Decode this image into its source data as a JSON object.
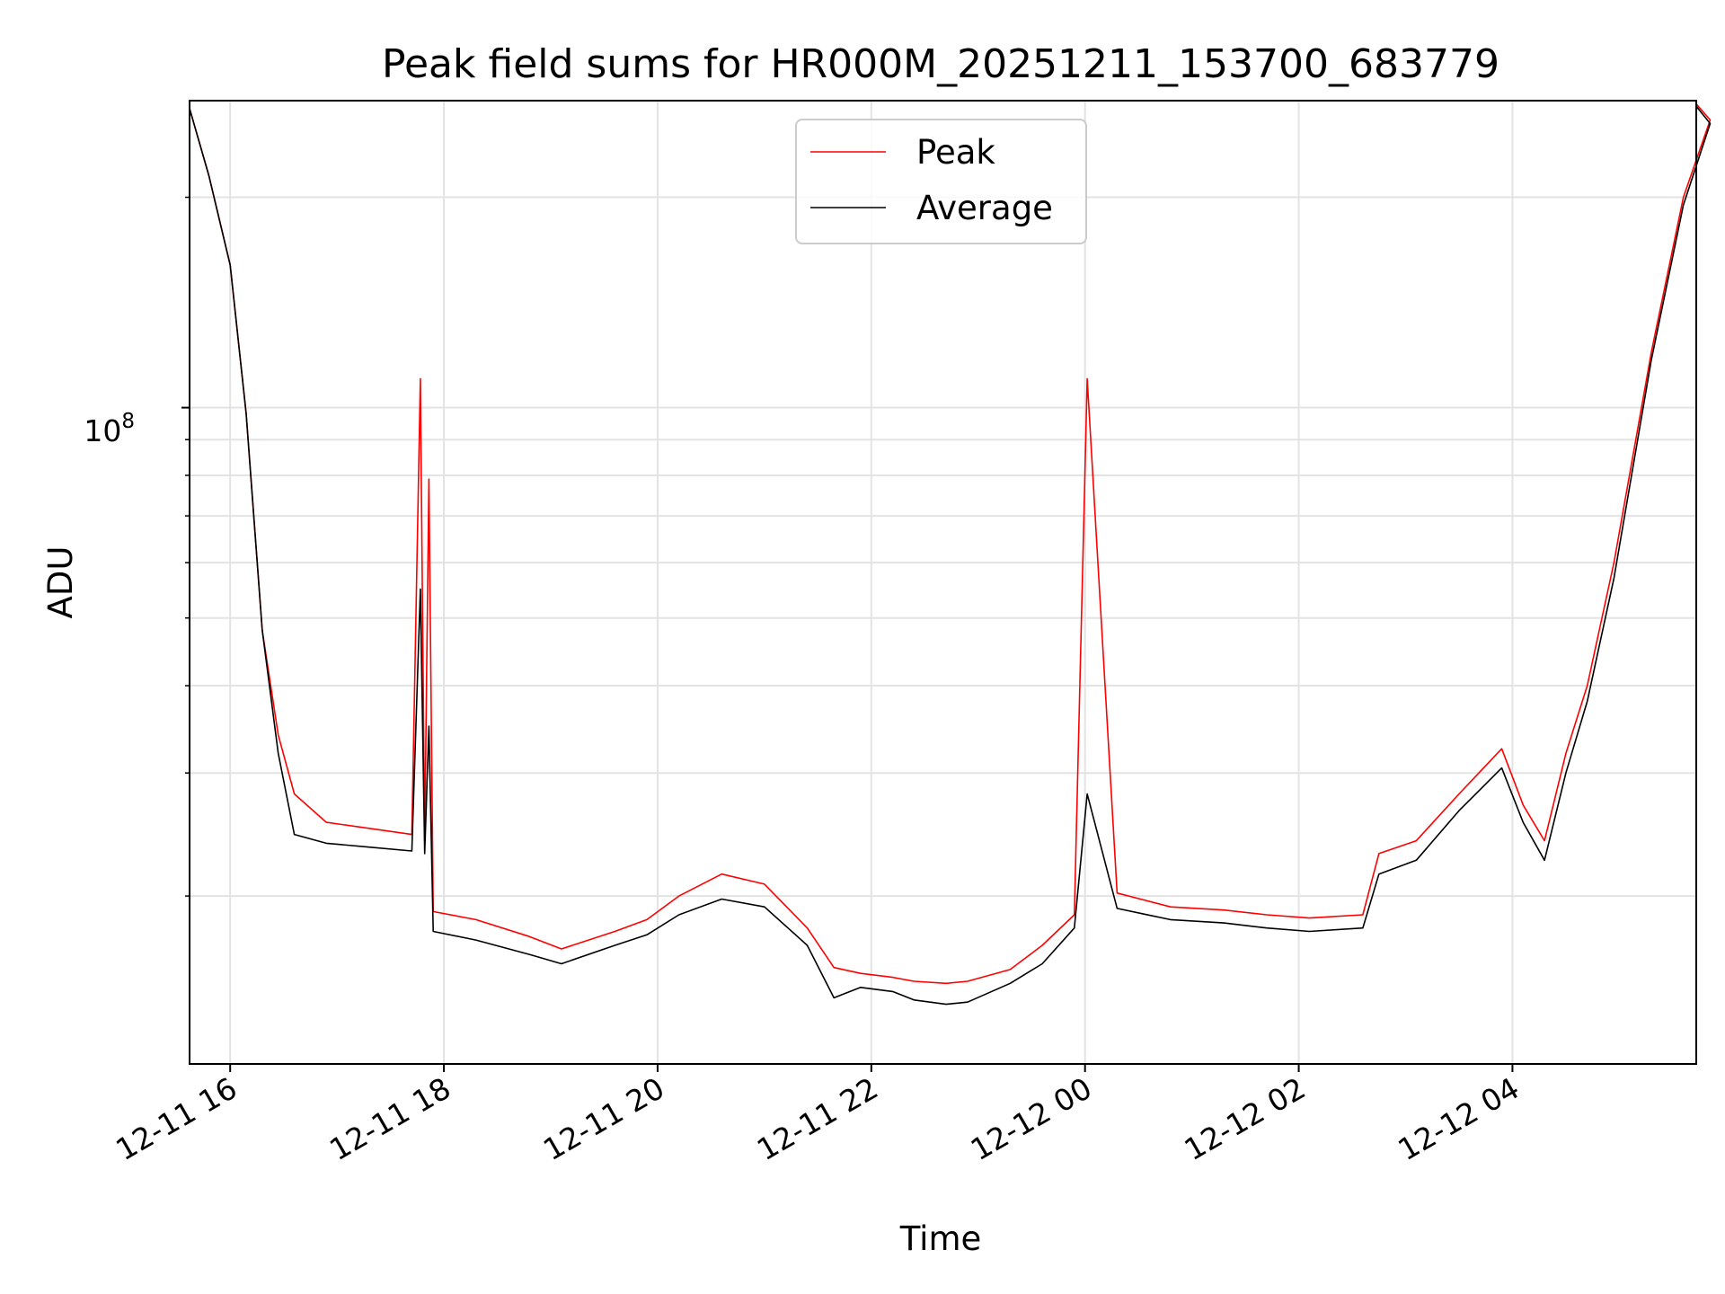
{
  "chart_data": {
    "type": "line",
    "title": "Peak field sums for HR000M_20251211_153700_683779",
    "xlabel": "Time",
    "ylabel": "ADU",
    "yscale": "log",
    "ylim": [
      11500000,
      275000000
    ],
    "xlim_hours": [
      15.62,
      5.72
    ],
    "grid": true,
    "legend_position": "top-center",
    "x_ticks": [
      "12-11 16",
      "12-11 18",
      "12-11 20",
      "12-11 22",
      "12-12 00",
      "12-12 02",
      "12-12 04"
    ],
    "x_tick_hours": [
      16,
      18,
      20,
      22,
      24,
      26,
      28
    ],
    "y_tick_label": {
      "base": "10",
      "exponent": "8"
    },
    "y_tick_value": 100000000,
    "series": [
      {
        "name": "Peak",
        "color": "#ff0000",
        "hours": [
          15.62,
          15.8,
          16.0,
          16.15,
          16.3,
          16.45,
          16.6,
          16.9,
          17.3,
          17.7,
          17.78,
          17.82,
          17.86,
          17.9,
          18.3,
          18.8,
          19.1,
          19.6,
          19.9,
          20.2,
          20.6,
          21.0,
          21.4,
          21.65,
          21.9,
          22.2,
          22.4,
          22.7,
          22.9,
          23.3,
          23.6,
          23.9,
          24.02,
          24.3,
          24.8,
          25.3,
          25.7,
          26.1,
          26.6,
          26.75,
          27.1,
          27.5,
          27.9,
          28.1,
          28.3,
          28.5,
          28.7,
          28.95,
          29.3,
          29.6,
          29.85,
          29.72
        ],
        "values": [
          268000000,
          215000000,
          160000000,
          98000000,
          48000000,
          34000000,
          28000000,
          25500000,
          25000000,
          24500000,
          110000000,
          24000000,
          79000000,
          19000000,
          18500000,
          17500000,
          16800000,
          17800000,
          18500000,
          20000000,
          21500000,
          20800000,
          18000000,
          15800000,
          15500000,
          15300000,
          15100000,
          15000000,
          15100000,
          15700000,
          17000000,
          18800000,
          110000000,
          20200000,
          19300000,
          19100000,
          18800000,
          18600000,
          18800000,
          23000000,
          24000000,
          28000000,
          32500000,
          27000000,
          24000000,
          32000000,
          40000000,
          60000000,
          120000000,
          200000000,
          258000000,
          272000000
        ]
      },
      {
        "name": "Average",
        "color": "#000000",
        "hours": [
          15.62,
          15.8,
          16.0,
          16.15,
          16.3,
          16.45,
          16.6,
          16.9,
          17.3,
          17.7,
          17.78,
          17.82,
          17.86,
          17.9,
          18.3,
          18.8,
          19.1,
          19.6,
          19.9,
          20.2,
          20.6,
          21.0,
          21.4,
          21.65,
          21.9,
          22.2,
          22.4,
          22.7,
          22.9,
          23.3,
          23.6,
          23.9,
          24.02,
          24.3,
          24.8,
          25.3,
          25.7,
          26.1,
          26.6,
          26.75,
          27.1,
          27.5,
          27.9,
          28.1,
          28.3,
          28.5,
          28.7,
          28.95,
          29.3,
          29.6,
          29.85,
          29.72
        ],
        "values": [
          268000000,
          215000000,
          160000000,
          98000000,
          48000000,
          32000000,
          24500000,
          23800000,
          23500000,
          23200000,
          55000000,
          23000000,
          35000000,
          17800000,
          17300000,
          16500000,
          16000000,
          17000000,
          17600000,
          18800000,
          19800000,
          19300000,
          17000000,
          14300000,
          14800000,
          14600000,
          14200000,
          14000000,
          14100000,
          15000000,
          16000000,
          18000000,
          28000000,
          19200000,
          18500000,
          18300000,
          18000000,
          17800000,
          18000000,
          21500000,
          22500000,
          26500000,
          30500000,
          25500000,
          22500000,
          30000000,
          38000000,
          57000000,
          117000000,
          195000000,
          255000000,
          270000000
        ]
      }
    ]
  }
}
